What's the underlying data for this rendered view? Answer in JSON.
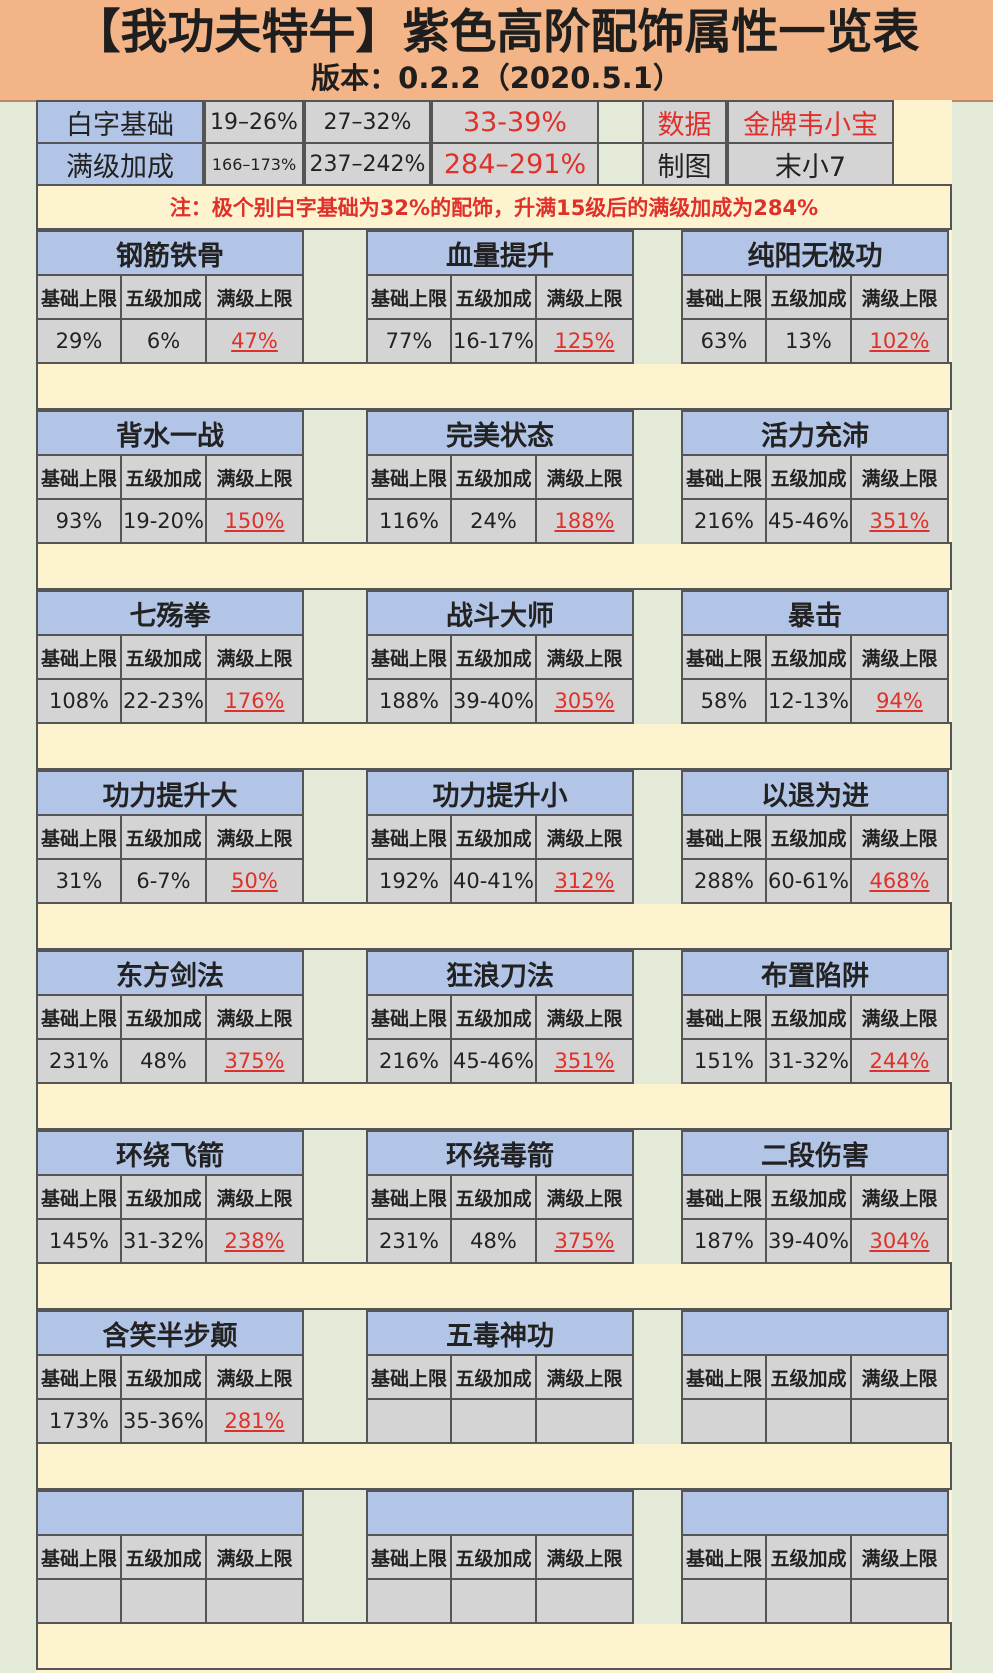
{
  "title": "【我功夫特牛】紫色高阶配饰属性一览表",
  "version": "版本：0.2.2（2020.5.1）",
  "top_table": {
    "rows": [
      {
        "label": "白字基础",
        "v1": "19–26%",
        "v2": "27–32%",
        "v3": "33-39%",
        "k": "数据",
        "kv": "金牌韦小宝"
      },
      {
        "label": "满级加成",
        "v1": "166–173%",
        "v2": "237–242%",
        "v3": "284–291%",
        "k": "制图",
        "kv": "末小7"
      }
    ]
  },
  "note": "注：极个别白字基础为32%的配饰，升满15级后的满级加成为284%",
  "sub_headers": [
    "基础上限",
    "五级加成",
    "满级上限"
  ],
  "colors": {
    "header_bg": "#f3b487",
    "card_blue": "#b3c5e6",
    "value_gray": "#d4d4d4",
    "cream": "#fdf3cf",
    "red": "#e0302a"
  },
  "cards": [
    {
      "name": "钢筋铁骨",
      "base": "29%",
      "five": "6%",
      "max": "47%"
    },
    {
      "name": "血量提升",
      "base": "77%",
      "five": "16-17%",
      "max": "125%"
    },
    {
      "name": "纯阳无极功",
      "base": "63%",
      "five": "13%",
      "max": "102%"
    },
    {
      "name": "背水一战",
      "base": "93%",
      "five": "19-20%",
      "max": "150%"
    },
    {
      "name": "完美状态",
      "base": "116%",
      "five": "24%",
      "max": "188%"
    },
    {
      "name": "活力充沛",
      "base": "216%",
      "five": "45-46%",
      "max": "351%"
    },
    {
      "name": "七殇拳",
      "base": "108%",
      "five": "22-23%",
      "max": "176%"
    },
    {
      "name": "战斗大师",
      "base": "188%",
      "five": "39-40%",
      "max": "305%"
    },
    {
      "name": "暴击",
      "base": "58%",
      "five": "12-13%",
      "max": "94%"
    },
    {
      "name": "功力提升大",
      "base": "31%",
      "five": "6-7%",
      "max": "50%"
    },
    {
      "name": "功力提升小",
      "base": "192%",
      "five": "40-41%",
      "max": "312%"
    },
    {
      "name": "以退为进",
      "base": "288%",
      "five": "60-61%",
      "max": "468%"
    },
    {
      "name": "东方剑法",
      "base": "231%",
      "five": "48%",
      "max": "375%"
    },
    {
      "name": "狂浪刀法",
      "base": "216%",
      "five": "45-46%",
      "max": "351%"
    },
    {
      "name": "布置陷阱",
      "base": "151%",
      "five": "31-32%",
      "max": "244%"
    },
    {
      "name": "环绕飞箭",
      "base": "145%",
      "five": "31-32%",
      "max": "238%"
    },
    {
      "name": "环绕毒箭",
      "base": "231%",
      "five": "48%",
      "max": "375%"
    },
    {
      "name": "二段伤害",
      "base": "187%",
      "five": "39-40%",
      "max": "304%"
    },
    {
      "name": "含笑半步颠",
      "base": "173%",
      "five": "35-36%",
      "max": "281%"
    },
    {
      "name": "五毒神功",
      "base": "",
      "five": "",
      "max": ""
    },
    {
      "name": "",
      "base": "",
      "five": "",
      "max": ""
    },
    {
      "name": "",
      "base": "",
      "five": "",
      "max": ""
    },
    {
      "name": "",
      "base": "",
      "five": "",
      "max": ""
    },
    {
      "name": "",
      "base": "",
      "five": "",
      "max": ""
    }
  ]
}
